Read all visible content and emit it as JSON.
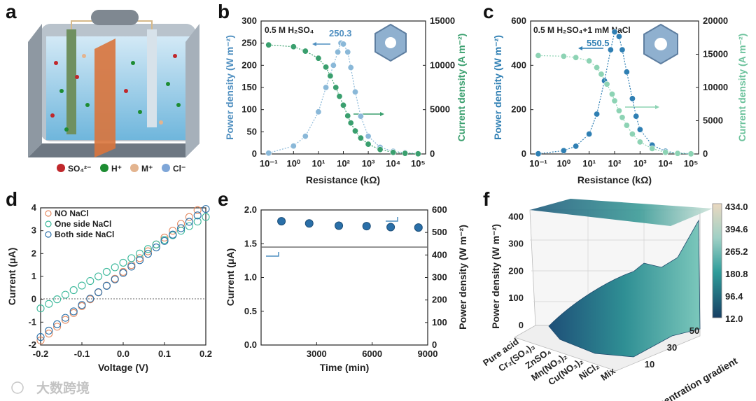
{
  "panel_labels": [
    "a",
    "b",
    "c",
    "d",
    "e",
    "f"
  ],
  "watermark": "大数跨境",
  "colors": {
    "blue": "#2f7fb3",
    "blue_light": "#8ab8d8",
    "green": "#3a9f6e",
    "green_light": "#8dd3b4",
    "ink": "#222222"
  },
  "panel_a": {
    "legend": [
      {
        "label": "SO₄²⁻",
        "color": "#c0282c"
      },
      {
        "label": "H⁺",
        "color": "#1d8c32"
      },
      {
        "label": "M⁺",
        "color": "#e3b48f"
      },
      {
        "label": "Cl⁻",
        "color": "#7ea6d8"
      }
    ]
  },
  "chart_data": [
    {
      "id": "b",
      "type": "line",
      "annotation": "0.5 M H₂SO₄",
      "peak_label": "250.3",
      "xlabel": "Resistance (kΩ)",
      "ylabel": "Power density (W m⁻²)",
      "ylabel2": "Current density (A m⁻²)",
      "xscale": "log",
      "xlim": [
        0.05,
        200000
      ],
      "xticks": [
        "10⁻¹",
        "10⁰",
        "10¹",
        "10²",
        "10³",
        "10⁴",
        "10⁵"
      ],
      "ylim": [
        0,
        300
      ],
      "yticks": [
        0,
        50,
        100,
        150,
        200,
        250,
        300
      ],
      "y2lim": [
        0,
        15000
      ],
      "y2ticks": [
        0,
        5000,
        10000,
        15000
      ],
      "series": [
        {
          "name": "Power density",
          "axis": "left",
          "color": "#8ab8d8",
          "x": [
            0.1,
            1,
            3,
            10,
            20,
            40,
            60,
            80,
            100,
            150,
            200,
            300,
            500,
            1000,
            3000,
            10000,
            30000,
            100000
          ],
          "y": [
            2,
            18,
            40,
            95,
            150,
            200,
            230,
            250.3,
            248,
            230,
            195,
            140,
            85,
            40,
            15,
            6,
            3,
            1
          ]
        },
        {
          "name": "Current density",
          "axis": "right",
          "color": "#3a9f6e",
          "x": [
            0.1,
            1,
            3,
            10,
            20,
            30,
            50,
            70,
            100,
            150,
            200,
            300,
            500,
            1000,
            3000,
            10000,
            30000,
            100000
          ],
          "y": [
            12300,
            12100,
            11600,
            10800,
            9800,
            8800,
            7500,
            6500,
            5500,
            4300,
            3500,
            2600,
            1800,
            1100,
            500,
            180,
            70,
            20
          ]
        }
      ]
    },
    {
      "id": "c",
      "type": "line",
      "annotation": "0.5 M H₂SO₄+1 mM NaCl",
      "peak_label": "550.5",
      "xlabel": "Resistance (kΩ)",
      "ylabel": "Power density (W m⁻²)",
      "ylabel2": "Current density (A m⁻²)",
      "xscale": "log",
      "xlim": [
        0.05,
        200000
      ],
      "xticks": [
        "10⁻¹",
        "10⁰",
        "10¹",
        "10²",
        "10³",
        "10⁴",
        "10⁵"
      ],
      "ylim": [
        0,
        600
      ],
      "yticks": [
        0,
        200,
        400,
        600
      ],
      "y2lim": [
        0,
        20000
      ],
      "y2ticks": [
        0,
        5000,
        10000,
        15000,
        20000
      ],
      "series": [
        {
          "name": "Power density",
          "axis": "left",
          "color": "#2f7fb3",
          "x": [
            0.1,
            1,
            3,
            10,
            20,
            40,
            70,
            100,
            150,
            200,
            300,
            500,
            700,
            1000,
            3000,
            10000,
            30000,
            100000
          ],
          "y": [
            1,
            15,
            35,
            90,
            180,
            330,
            470,
            550.5,
            530,
            470,
            370,
            250,
            170,
            110,
            40,
            12,
            4,
            1
          ]
        },
        {
          "name": "Current density",
          "axis": "right",
          "color": "#8dd3b4",
          "x": [
            0.1,
            1,
            3,
            10,
            20,
            30,
            50,
            80,
            100,
            150,
            200,
            300,
            500,
            1000,
            3000,
            10000,
            30000,
            100000
          ],
          "y": [
            14800,
            14700,
            14500,
            14000,
            13000,
            12000,
            10500,
            9000,
            8000,
            6500,
            5500,
            4300,
            3000,
            1800,
            800,
            250,
            80,
            20
          ]
        }
      ]
    },
    {
      "id": "d",
      "type": "scatter",
      "xlabel": "Voltage (V)",
      "ylabel": "Current (μA)",
      "xlim": [
        -0.2,
        0.2
      ],
      "ylim": [
        -2,
        4
      ],
      "xticks": [
        "-0.2",
        "-0.1",
        "0.0",
        "0.1",
        "0.2"
      ],
      "yticks": [
        "-2",
        "-1",
        "0",
        "1",
        "2",
        "3",
        "4"
      ],
      "series": [
        {
          "name": "NO NaCl",
          "color": "#e58a60",
          "slope": 15.0,
          "intercept": 1.2
        },
        {
          "name": "One side NaCl",
          "color": "#3ab89a",
          "slope": 10.0,
          "intercept": 1.6
        },
        {
          "name": "Both  side NaCl",
          "color": "#2a6fa8",
          "slope": 14.0,
          "intercept": 1.15
        }
      ]
    },
    {
      "id": "e",
      "type": "scatter",
      "xlabel": "Time (min)",
      "ylabel": "Current (μA)",
      "ylabel2": "Power density (W m⁻²)",
      "xlim": [
        0,
        9000
      ],
      "xticks": [
        "3000",
        "6000",
        "9000"
      ],
      "ylim": [
        0,
        2
      ],
      "yticks": [
        "0.0",
        "0.5",
        "1.0",
        "1.5",
        "2.0"
      ],
      "y2lim": [
        0,
        600
      ],
      "y2ticks": [
        "0",
        "100",
        "200",
        "300",
        "400",
        "500",
        "600"
      ],
      "current_level": 1.45,
      "series": [
        {
          "name": "Power density",
          "axis": "right",
          "color": "#2a6fa8",
          "x": [
            1100,
            2600,
            4200,
            5700,
            7000,
            8500
          ],
          "y": [
            550,
            540,
            530,
            528,
            524,
            522
          ]
        }
      ]
    },
    {
      "id": "f",
      "type": "surface3d",
      "zlabel": "Power density (W m⁻²)",
      "ylabel": "Concentration gradient",
      "x_categories": [
        "Pure acid",
        "Cr₂(SO₄)₃",
        "ZnSO₄",
        "Mn(NO₃)₂",
        "Cu(NO₃)₂",
        "NiCl₂",
        "Mix"
      ],
      "y_ticks": [
        "10",
        "30",
        "50"
      ],
      "z_ticks": [
        "0",
        "100",
        "200",
        "300",
        "400"
      ],
      "colorbar_ticks": [
        "434.0",
        "394.6",
        "265.2",
        "180.8",
        "96.4",
        "12.0"
      ],
      "zlim": [
        12.0,
        434.0
      ]
    }
  ]
}
